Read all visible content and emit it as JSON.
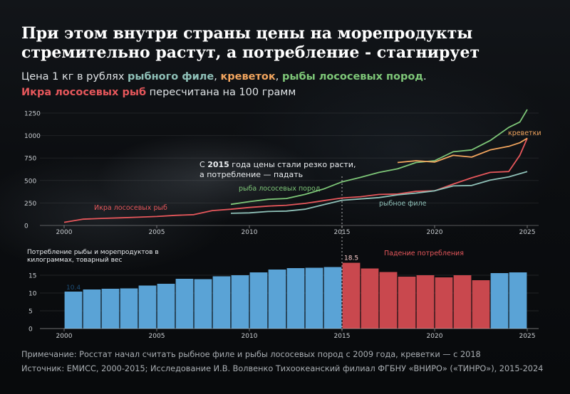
{
  "title_line1": "При этом внутри страны цены на морепродукты",
  "title_line2": "стремительно растут, а потребление - стагнирует",
  "subtitle": {
    "prefix": "Цена 1 кг в рублях ",
    "fish_fillet": "рыбного филе",
    "sep1": ", ",
    "shrimp": "креветок",
    "sep2": ", ",
    "salmon": "рыбы лососевых пород",
    "end1": ".",
    "caviar": "Икра лососевых рыб",
    "suffix": " пересчитана на 100 грамм"
  },
  "colors": {
    "fish_fillet": "#8fc1b8",
    "shrimp": "#f2a55e",
    "salmon": "#7ec778",
    "caviar": "#e6575b",
    "bar_blue": "#5aa3d6",
    "bar_red": "#c9484e"
  },
  "chart_data": [
    {
      "type": "line",
      "xlim": [
        2000,
        2025
      ],
      "ylim": [
        0,
        1250
      ],
      "yticks": [
        "0",
        "250",
        "500",
        "750",
        "1000",
        "1250"
      ],
      "xticks": [
        "2000",
        "2005",
        "2010",
        "2015",
        "2020",
        "2025"
      ],
      "annotation_line1_pre": "С ",
      "annotation_year": "2015",
      "annotation_line1_post": " года цены стали резко расти,",
      "annotation_line2": "а потребление — падать",
      "series": [
        {
          "name": "Икра лососевых рыб",
          "key": "caviar",
          "points": [
            [
              2000,
              35
            ],
            [
              2001,
              70
            ],
            [
              2002,
              78
            ],
            [
              2003,
              85
            ],
            [
              2004,
              92
            ],
            [
              2005,
              100
            ],
            [
              2006,
              112
            ],
            [
              2007,
              120
            ],
            [
              2008,
              165
            ],
            [
              2009,
              180
            ],
            [
              2010,
              200
            ],
            [
              2011,
              215
            ],
            [
              2012,
              225
            ],
            [
              2013,
              245
            ],
            [
              2014,
              275
            ],
            [
              2015,
              305
            ],
            [
              2016,
              320
            ],
            [
              2017,
              345
            ],
            [
              2018,
              350
            ],
            [
              2019,
              380
            ],
            [
              2020,
              385
            ],
            [
              2021,
              460
            ],
            [
              2022,
              530
            ],
            [
              2023,
              590
            ],
            [
              2024,
              600
            ],
            [
              2024.6,
              780
            ],
            [
              2025,
              970
            ]
          ]
        },
        {
          "name": "рыба лососевых пород",
          "key": "salmon",
          "points": [
            [
              2009,
              235
            ],
            [
              2010,
              265
            ],
            [
              2011,
              290
            ],
            [
              2012,
              300
            ],
            [
              2013,
              345
            ],
            [
              2014,
              405
            ],
            [
              2015,
              485
            ],
            [
              2016,
              535
            ],
            [
              2017,
              590
            ],
            [
              2018,
              630
            ],
            [
              2019,
              700
            ],
            [
              2020,
              720
            ],
            [
              2021,
              820
            ],
            [
              2022,
              840
            ],
            [
              2023,
              945
            ],
            [
              2024,
              1090
            ],
            [
              2024.6,
              1150
            ],
            [
              2025,
              1290
            ]
          ]
        },
        {
          "name": "креветки",
          "key": "shrimp",
          "points": [
            [
              2018,
              700
            ],
            [
              2019,
              720
            ],
            [
              2020,
              705
            ],
            [
              2021,
              780
            ],
            [
              2022,
              760
            ],
            [
              2023,
              840
            ],
            [
              2024,
              880
            ],
            [
              2024.6,
              920
            ],
            [
              2025,
              970
            ]
          ]
        },
        {
          "name": "рыбное филе",
          "key": "fish_fillet",
          "points": [
            [
              2009,
              135
            ],
            [
              2010,
              140
            ],
            [
              2011,
              155
            ],
            [
              2012,
              160
            ],
            [
              2013,
              180
            ],
            [
              2014,
              230
            ],
            [
              2015,
              280
            ],
            [
              2016,
              295
            ],
            [
              2017,
              310
            ],
            [
              2018,
              340
            ],
            [
              2019,
              360
            ],
            [
              2020,
              385
            ],
            [
              2021,
              440
            ],
            [
              2022,
              445
            ],
            [
              2023,
              505
            ],
            [
              2024,
              540
            ],
            [
              2025,
              600
            ]
          ]
        }
      ]
    },
    {
      "type": "bar",
      "ylabel_line1": "Потребление рыбы и морепродуктов в",
      "ylabel_line2": "килограммах, товарный вес",
      "xlim": [
        2000,
        2025
      ],
      "ylim": [
        0,
        20
      ],
      "yticks": [
        "0",
        "5",
        "10",
        "15"
      ],
      "xticks": [
        "2000",
        "2005",
        "2010",
        "2015",
        "2020",
        "2025"
      ],
      "first_label": "10.4",
      "peak_label": "18.5",
      "decline_label": "Падение потребления",
      "years": [
        2000,
        2001,
        2002,
        2003,
        2004,
        2005,
        2006,
        2007,
        2008,
        2009,
        2010,
        2011,
        2012,
        2013,
        2014,
        2015,
        2016,
        2017,
        2018,
        2019,
        2020,
        2021,
        2022,
        2023,
        2024
      ],
      "values": [
        10.4,
        11.0,
        11.2,
        11.3,
        12.1,
        12.6,
        14.0,
        13.9,
        14.7,
        15.0,
        15.8,
        16.6,
        17.0,
        17.1,
        17.3,
        18.5,
        16.9,
        15.9,
        14.6,
        15.0,
        14.4,
        15.0,
        13.6,
        15.6,
        15.8
      ],
      "highlight_range": [
        2015,
        2022
      ]
    }
  ],
  "footnote1": "Примечание: Росстат начал считать рыбное филе и рыбы лососевых пород с 2009 года, креветки — с 2018",
  "footnote2": "Источник: ЕМИСС, 2000-2015; Исследование И.В. Волвенко Тихоокеанский филиал ФГБНУ «ВНИРО» («ТИНРО»), 2015-2024"
}
